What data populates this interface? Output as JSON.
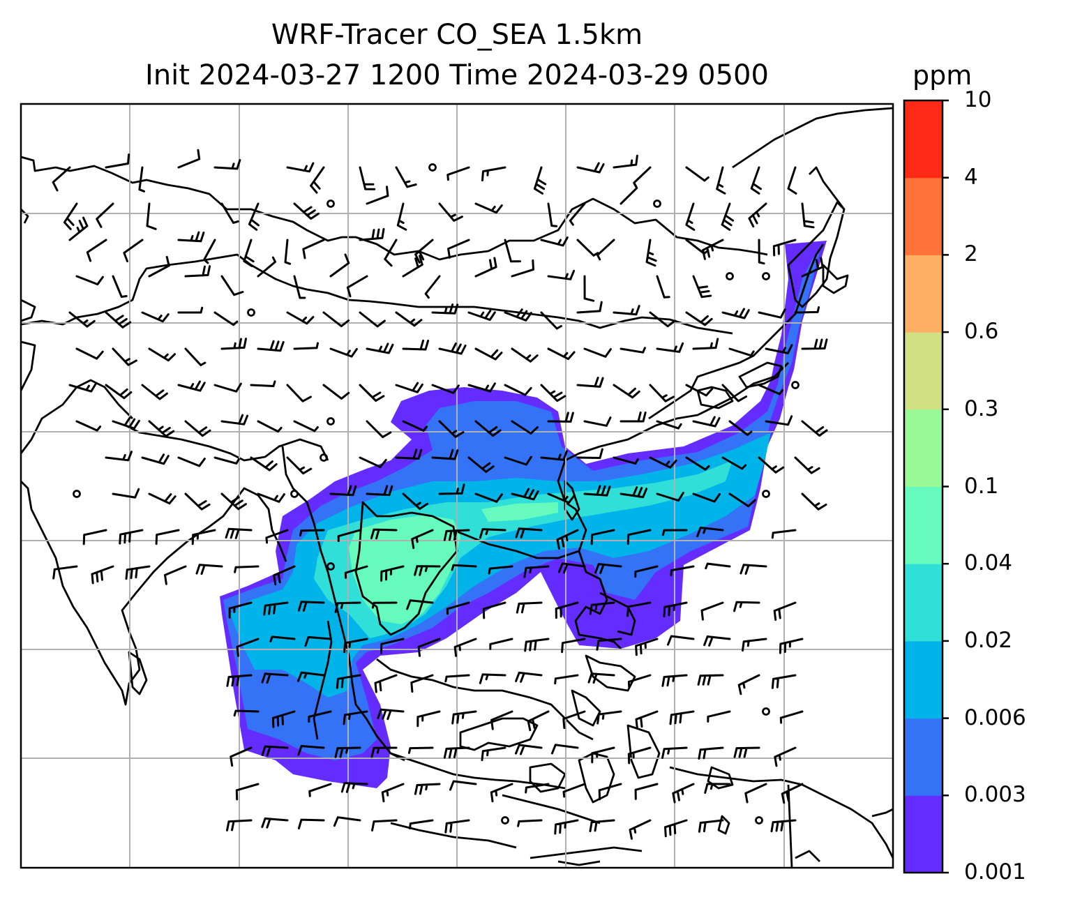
{
  "title_line1": "WRF-Tracer CO_SEA 1.5km",
  "title_line2": "Init 2024-03-27 1200 Time 2024-03-29 0500",
  "colorbar": {
    "unit": "ppm",
    "levels": [
      "0.001",
      "0.003",
      "0.006",
      "0.02",
      "0.04",
      "0.1",
      "0.3",
      "0.6",
      "2",
      "4",
      "10"
    ],
    "colors": [
      "#652cff",
      "#3473f6",
      "#00b4ea",
      "#30dfd8",
      "#66fbbd",
      "#98fb98",
      "#d1e083",
      "#fdb064",
      "#ff7238",
      "#ff2a16"
    ]
  },
  "map": {
    "background": "#ffffff",
    "gridline_color": "#b0b0b0",
    "coastline_color": "#000000",
    "wind_barb_color": "#000000"
  }
}
